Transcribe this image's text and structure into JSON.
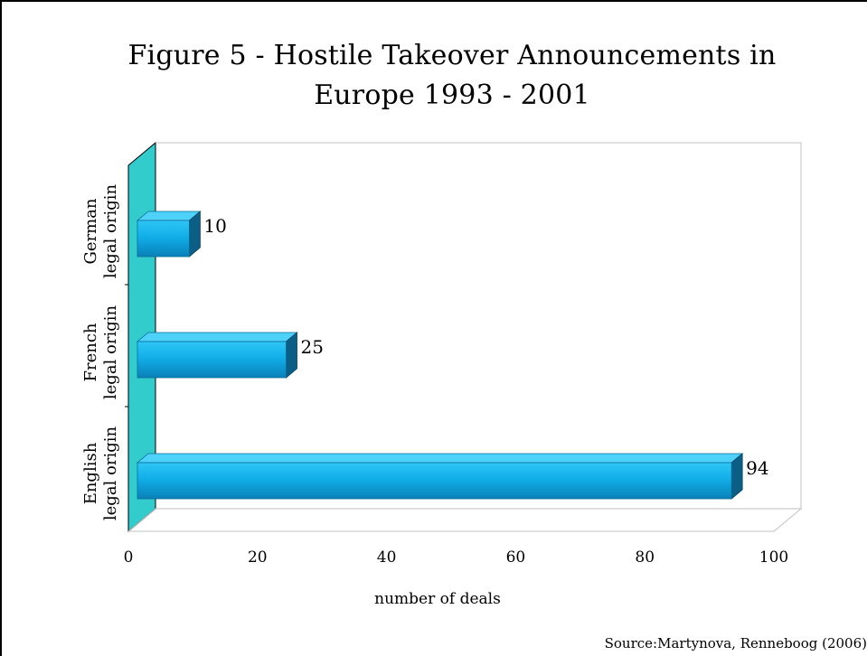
{
  "chart_data": {
    "type": "bar",
    "orientation": "horizontal",
    "title_lines": [
      "Figure 5 - Hostile Takeover Announcements in",
      "Europe 1993 - 2001"
    ],
    "categories": [
      [
        "English",
        "legal origin"
      ],
      [
        "French",
        "legal origin"
      ],
      [
        "German",
        "legal origin"
      ]
    ],
    "values": [
      94,
      25,
      10
    ],
    "data_labels": [
      "94",
      "25",
      "10"
    ],
    "xlabel": "number of deals",
    "xlim": [
      0,
      100
    ],
    "xticks": [
      "0",
      "20",
      "40",
      "60",
      "80",
      "100"
    ],
    "xtick_values": [
      0,
      20,
      40,
      60,
      80,
      100
    ],
    "grid": false,
    "style": "3d",
    "colors": {
      "bar_front": "#11aee8",
      "bar_top": "#4fd2fa",
      "bar_side": "#0b5f86",
      "wall": "#33cccc",
      "floor_line": "#c0c0c0"
    }
  },
  "source": "Source:Martynova, Renneboog (2006)"
}
